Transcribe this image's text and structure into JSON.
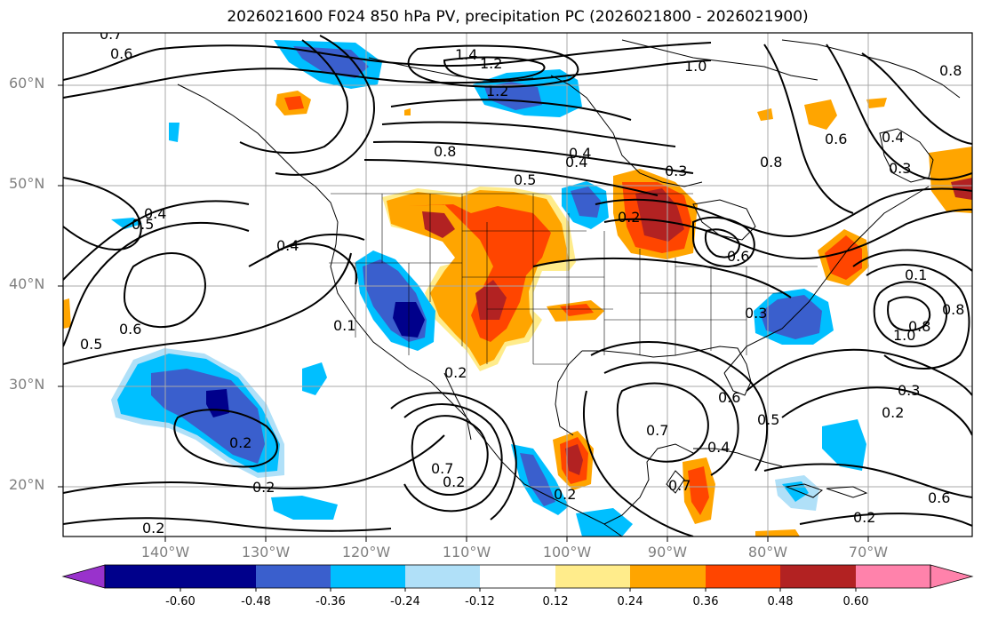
{
  "title": "2026021600 F024 850 hPa PV, precipitation PC (2026021800 - 2026021900)",
  "axes": {
    "y_ticks": [
      {
        "label": "60°N",
        "lat": 60
      },
      {
        "label": "50°N",
        "lat": 50
      },
      {
        "label": "40°N",
        "lat": 40
      },
      {
        "label": "30°N",
        "lat": 30
      },
      {
        "label": "20°N",
        "lat": 20
      }
    ],
    "x_ticks": [
      {
        "label": "140°W",
        "lon": -140
      },
      {
        "label": "130°W",
        "lon": -130
      },
      {
        "label": "120°W",
        "lon": -120
      },
      {
        "label": "110°W",
        "lon": -110
      },
      {
        "label": "100°W",
        "lon": -100
      },
      {
        "label": "90°W",
        "lon": -90
      },
      {
        "label": "80°W",
        "lon": -80
      },
      {
        "label": "70°W",
        "lon": -70
      }
    ],
    "lon_range": [
      -150,
      -59
    ],
    "lat_range": [
      15,
      65
    ],
    "grid": true
  },
  "colorbar": {
    "ticks": [
      "-0.60",
      "-0.48",
      "-0.36",
      "-0.24",
      "-0.12",
      "0.12",
      "0.24",
      "0.36",
      "0.48",
      "0.60"
    ],
    "colors": [
      "#9932cc",
      "#00008b",
      "#3a5fcd",
      "#00bfff",
      "#b0e0f8",
      "#ffffff",
      "#ffec8b",
      "#ffa500",
      "#ff4500",
      "#b22222",
      "#ff82ab"
    ]
  },
  "contour_labels": [
    "0.7",
    "0.6",
    "1.4",
    "1.2",
    "1.2",
    "1.0",
    "0.8",
    "0.8",
    "0.4",
    "0.5",
    "0.3",
    "0.2",
    "0.6",
    "0.4",
    "0.1",
    "0.3",
    "0.8",
    "0.6",
    "0.6",
    "0.5",
    "0.4",
    "0.1",
    "0.2",
    "0.2",
    "0.2",
    "0.7",
    "0.6",
    "0.5",
    "0.4",
    "0.3",
    "0.2",
    "0.2",
    "0.2",
    "1.0",
    "0.8",
    "0.7",
    "0.7",
    "0.5",
    "0.4",
    "0.3",
    "0.8",
    "0.6",
    "0.2",
    "0.2",
    "0.4"
  ]
}
